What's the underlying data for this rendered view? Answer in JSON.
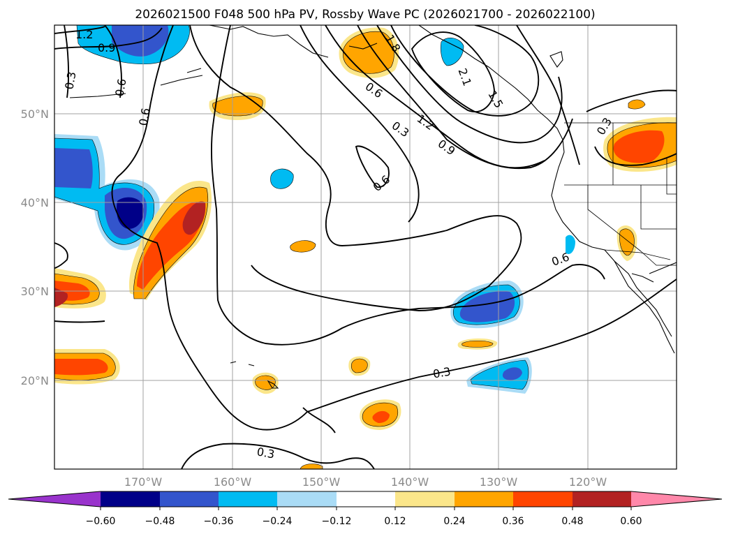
{
  "title": "2026021500 F048 500 hPa PV, Rossby Wave PC (2026021700 - 2026022100)",
  "map": {
    "lon_labels": [
      "170°W",
      "160°W",
      "150°W",
      "140°W",
      "130°W",
      "120°W"
    ],
    "lat_labels": [
      "50°N",
      "40°N",
      "30°N",
      "20°N"
    ],
    "contour_labels": [
      "1.2",
      "0.9",
      "0.3",
      "0.6",
      "0.6",
      "1.8",
      "2.1",
      "1.5",
      "0.6",
      "0.3",
      "1.2",
      "0.9",
      "0.6",
      "0.3",
      "0.6",
      "0.3",
      "0.3"
    ],
    "colors": {
      "neg_extend": "#9933cc",
      "neg_060": "#000088",
      "neg_048": "#3355cc",
      "neg_036": "#00bbf2",
      "neg_024": "#aadcf6",
      "zero": "#ffffff",
      "pos_012": "#fbe68a",
      "pos_024": "#ffa500",
      "pos_036": "#ff4500",
      "pos_048": "#b22222",
      "pos_extend": "#ff88aa"
    }
  },
  "colorbar": {
    "labels": [
      "−0.60",
      "−0.48",
      "−0.36",
      "−0.24",
      "−0.12",
      "0.12",
      "0.24",
      "0.36",
      "0.48",
      "0.60"
    ]
  }
}
